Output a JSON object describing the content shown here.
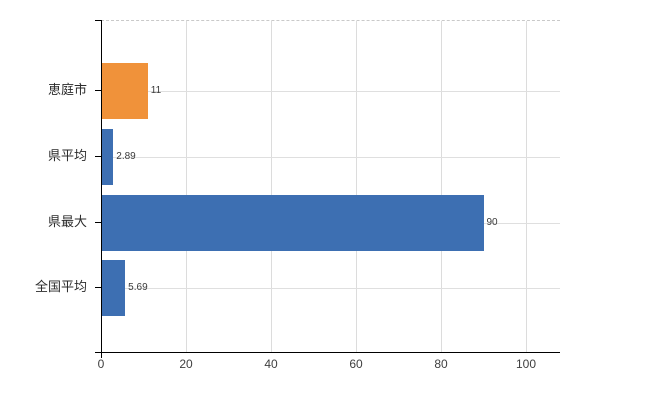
{
  "chart_data": {
    "type": "bar",
    "orientation": "horizontal",
    "title": "",
    "xlabel": "",
    "ylabel": "",
    "categories": [
      "恵庭市",
      "県平均",
      "県最大",
      "全国平均"
    ],
    "values": [
      11,
      2.89,
      90,
      5.69
    ],
    "value_labels": [
      "11",
      "2.89",
      "90",
      "5.69"
    ],
    "bar_colors": [
      "#f0923a",
      "#3d6fb2",
      "#3d6fb2",
      "#3d6fb2"
    ],
    "xlim": [
      0,
      108
    ],
    "xticks": [
      "0",
      "20",
      "40",
      "60",
      "80",
      "100"
    ],
    "grid": true,
    "legend": false,
    "colors": {
      "highlight_bar": "#f0923a",
      "default_bar": "#3d6fb2",
      "gridline": "#dcdcdc",
      "axis": "#000000",
      "tick_text": "#3f3f3f",
      "value_text": "#3a3a3a",
      "background": "#ffffff",
      "plot_top_border": "#c9c9c9"
    }
  }
}
